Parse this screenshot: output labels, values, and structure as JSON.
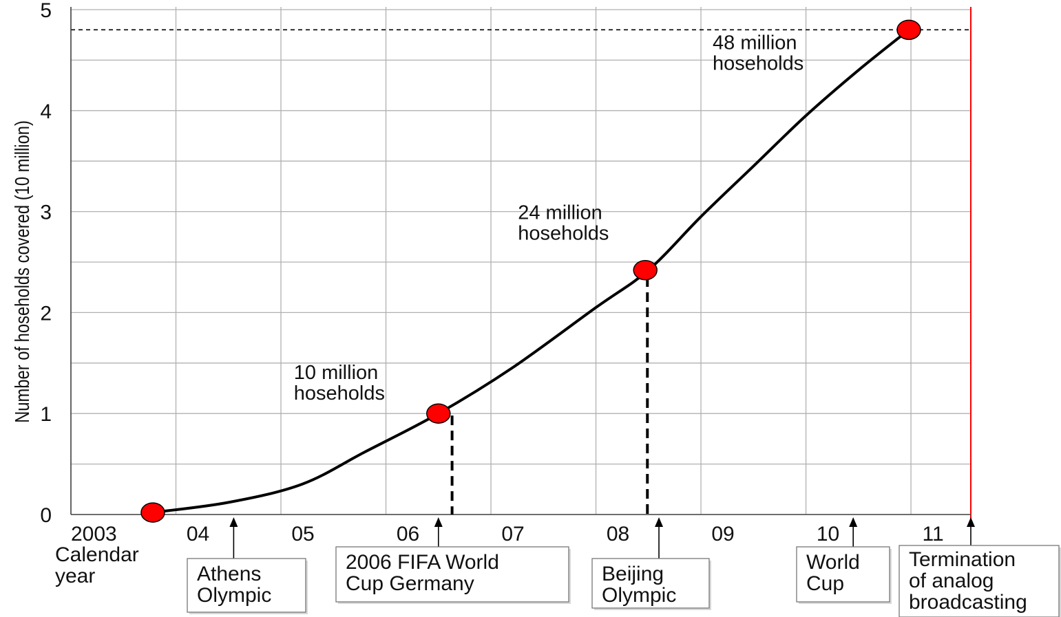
{
  "chart_data": {
    "type": "line",
    "title": "",
    "ylabel": "Number of hoseholds covered (10 million)",
    "xlabel_lines": [
      "Calendar",
      "year"
    ],
    "x_tick_labels": [
      "2003",
      "04",
      "05",
      "06",
      "07",
      "08",
      "09",
      "10",
      "11"
    ],
    "y_tick_labels": [
      "0",
      "1",
      "2",
      "3",
      "4",
      "5"
    ],
    "ylim": [
      0,
      5
    ],
    "xlim": [
      2003,
      2011.57
    ],
    "grid": true,
    "series": [
      {
        "values": [
          [
            2003.78,
            0.02
          ],
          [
            2004.5,
            0.12
          ],
          [
            2005.2,
            0.3
          ],
          [
            2005.8,
            0.62
          ],
          [
            2006.5,
            1.0
          ],
          [
            2007.2,
            1.45
          ],
          [
            2008.0,
            2.05
          ],
          [
            2008.5,
            2.42
          ],
          [
            2009.0,
            2.95
          ],
          [
            2009.5,
            3.45
          ],
          [
            2010.0,
            3.95
          ],
          [
            2010.5,
            4.4
          ],
          [
            2010.98,
            4.8
          ]
        ]
      }
    ],
    "milestones": [
      {
        "x": 2003.78,
        "y": 0.02,
        "label": []
      },
      {
        "x": 2006.5,
        "y": 1.0,
        "label": [
          "10 million",
          "hoseholds"
        ]
      },
      {
        "x": 2008.47,
        "y": 2.42,
        "label": [
          "24 million",
          "hoseholds"
        ]
      },
      {
        "x": 2010.98,
        "y": 4.8,
        "label": [
          "48 million",
          "hoseholds"
        ]
      }
    ],
    "reference_line": {
      "y": 4.8,
      "style": "dashed"
    },
    "termination_line": {
      "x": 2011.57,
      "color": "#ff0000"
    },
    "events": [
      {
        "x": 2004.55,
        "label": [
          "Athens",
          "Olympic"
        ]
      },
      {
        "x": 2006.5,
        "label": [
          "2006 FIFA World",
          "Cup Germany"
        ]
      },
      {
        "x": 2008.6,
        "label": [
          "Beijing",
          "Olympic"
        ]
      },
      {
        "x": 2010.45,
        "label": [
          "World",
          "Cup"
        ]
      },
      {
        "x": 2011.57,
        "label": [
          "Termination",
          "of analog",
          "broadcasting"
        ]
      }
    ],
    "colors": {
      "line": "#000000",
      "marker_fill": "#ff0000",
      "marker_stroke": "#000000",
      "grid": "#b0b0b0",
      "termination": "#ff0000"
    }
  }
}
